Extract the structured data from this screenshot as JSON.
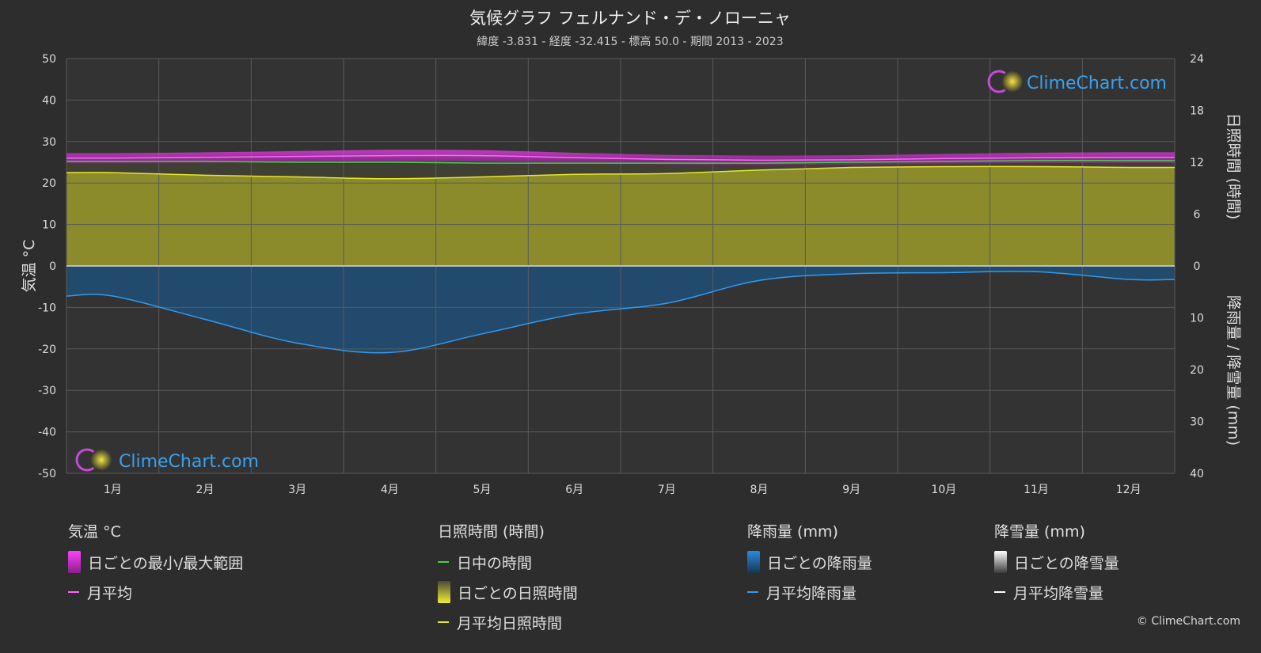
{
  "title": "気候グラフ フェルナンド・デ・ノローニャ",
  "subtitle": "緯度 -3.831 - 経度 -32.415 - 標高 50.0 - 期間 2013 - 2023",
  "watermark": "ClimeChart.com",
  "copyright": "© ClimeChart.com",
  "colors": {
    "background": "#2d2d2d",
    "temp_range": "#d63fd6",
    "temp_avg": "#ff66ff",
    "daylight": "#3dd63d",
    "sunshine_fill": "#8b8b2c",
    "sunshine_avg": "#e6e62e",
    "rain_fill": "#1f4f78",
    "rain_avg": "#3399ee",
    "snow_avg": "#ffffff"
  },
  "chart_data": {
    "type": "area",
    "categories": [
      "1月",
      "2月",
      "3月",
      "4月",
      "5月",
      "6月",
      "7月",
      "8月",
      "9月",
      "10月",
      "11月",
      "12月"
    ],
    "axes": {
      "left": {
        "label": "気温 °C",
        "ylim": [
          -50,
          50
        ],
        "ticks": [
          "50",
          "40",
          "30",
          "20",
          "10",
          "0",
          "-10",
          "-20",
          "-30",
          "-40",
          "-50"
        ]
      },
      "right_top": {
        "label": "日照時間 (時間)",
        "ylim": [
          0,
          24
        ],
        "ticks": [
          "24",
          "18",
          "12",
          "6",
          "0"
        ]
      },
      "right_bottom": {
        "label": "降雨量 / 降雪量 (mm)",
        "ylim": [
          0,
          40
        ],
        "ticks": [
          "10",
          "20",
          "30",
          "40"
        ]
      }
    },
    "grid": true,
    "series": [
      {
        "name": "月平均",
        "axis": "temperature",
        "values": [
          26.0,
          26.2,
          26.4,
          26.6,
          26.6,
          26.1,
          25.7,
          25.5,
          25.6,
          25.9,
          26.1,
          26.2
        ]
      },
      {
        "name": "日中の時間",
        "axis": "sunshine",
        "values": [
          12.1,
          12.1,
          12.0,
          12.0,
          11.9,
          11.9,
          11.9,
          11.9,
          12.0,
          12.1,
          12.2,
          12.2
        ]
      },
      {
        "name": "月平均日照時間",
        "axis": "sunshine",
        "values": [
          10.8,
          10.5,
          10.3,
          10.1,
          10.3,
          10.6,
          10.7,
          11.1,
          11.4,
          11.5,
          11.5,
          11.4
        ]
      },
      {
        "name": "月平均降雨量",
        "axis": "precipitation",
        "values": [
          5.8,
          10.3,
          14.9,
          16.7,
          13.1,
          9.3,
          7.2,
          2.8,
          1.5,
          1.3,
          1.1,
          2.6
        ]
      },
      {
        "name": "月平均降雪量",
        "axis": "precipitation",
        "values": [
          0,
          0,
          0,
          0,
          0,
          0,
          0,
          0,
          0,
          0,
          0,
          0
        ]
      }
    ],
    "temp_daily_range": {
      "min": [
        24.8,
        24.9,
        25.0,
        25.1,
        25.1,
        24.8,
        24.5,
        24.3,
        24.4,
        24.6,
        24.8,
        24.8
      ],
      "max": [
        27.2,
        27.4,
        27.7,
        28.0,
        27.9,
        27.3,
        26.8,
        26.6,
        26.7,
        27.0,
        27.3,
        27.4
      ]
    }
  },
  "legend": {
    "temperature": {
      "title": "気温 °C",
      "items": [
        {
          "label": "日ごとの最小/最大範囲",
          "kind": "box"
        },
        {
          "label": "月平均",
          "kind": "line"
        }
      ]
    },
    "sunshine": {
      "title": "日照時間 (時間)",
      "items": [
        {
          "label": "日中の時間",
          "kind": "line"
        },
        {
          "label": "日ごとの日照時間",
          "kind": "box"
        },
        {
          "label": "月平均日照時間",
          "kind": "line"
        }
      ]
    },
    "rain": {
      "title": "降雨量 (mm)",
      "items": [
        {
          "label": "日ごとの降雨量",
          "kind": "box"
        },
        {
          "label": "月平均降雨量",
          "kind": "line"
        }
      ]
    },
    "snow": {
      "title": "降雪量 (mm)",
      "items": [
        {
          "label": "日ごとの降雪量",
          "kind": "box"
        },
        {
          "label": "月平均降雪量",
          "kind": "line"
        }
      ]
    }
  }
}
